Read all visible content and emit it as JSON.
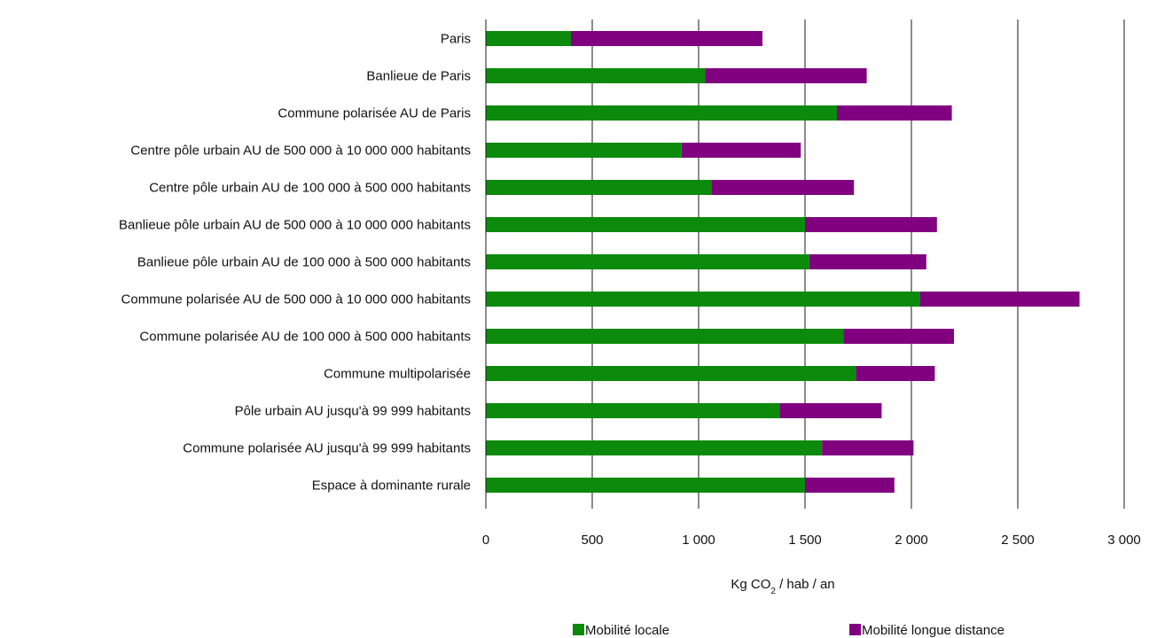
{
  "chart_data": {
    "type": "bar",
    "orientation": "horizontal",
    "stacked": true,
    "categories": [
      "Paris",
      "Banlieue de Paris",
      "Commune polarisée AU de Paris",
      "Centre pôle urbain AU de 500 000 à 10 000 000 habitants",
      "Centre pôle urbain AU de 100 000 à 500 000 habitants",
      "Banlieue pôle urbain AU de 500 000 à 10 000 000 habitants",
      "Banlieue pôle urbain AU de 100 000 à 500 000 habitants",
      "Commune polarisée AU de 500 000 à 10 000 000 habitants",
      "Commune polarisée AU de 100 000 à 500 000 habitants",
      "Commune multipolarisée",
      "Pôle urbain AU jusqu'à 99 999 habitants",
      "Commune polarisée AU jusqu'à 99 999 habitants",
      "Espace à dominante rurale"
    ],
    "series": [
      {
        "name": "Mobilité locale",
        "color": "#0b8a0b",
        "values": [
          400,
          1030,
          1650,
          920,
          1060,
          1500,
          1520,
          2040,
          1680,
          1740,
          1380,
          1580,
          1500
        ]
      },
      {
        "name": "Mobilité longue distance",
        "color": "#800080",
        "values": [
          900,
          760,
          540,
          560,
          670,
          620,
          550,
          750,
          520,
          370,
          480,
          430,
          420
        ]
      }
    ],
    "xlim": [
      0,
      3000
    ],
    "xticks": [
      0,
      500,
      1000,
      1500,
      2000,
      2500,
      3000
    ],
    "xtick_labels": [
      "0",
      "500",
      "1 000",
      "1 500",
      "2 000",
      "2 500",
      "3 000"
    ],
    "xlabel": {
      "prefix": "Kg CO",
      "subscript": "2",
      "suffix": " / hab / an"
    },
    "ylabel": "",
    "title": "",
    "grid": "vertical",
    "legend_position": "bottom"
  }
}
